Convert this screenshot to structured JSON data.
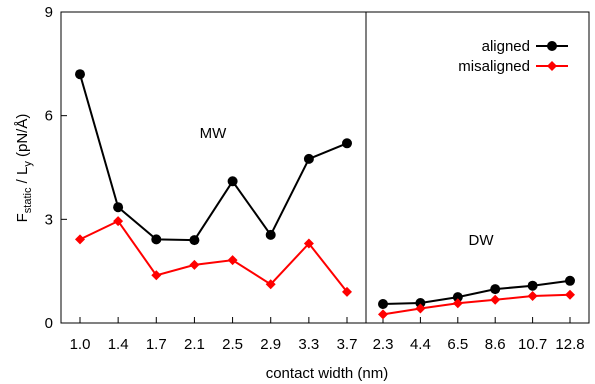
{
  "chart_data": {
    "type": "line",
    "xlabel": "contact width (nm)",
    "ylabel_main": "F",
    "ylabel_sub": "static",
    "ylabel_mid": " / L",
    "ylabel_sub2": "y",
    "ylabel_unit": "  (pN/Å)",
    "ylim": [
      0,
      9
    ],
    "yticks": [
      "0",
      "3",
      "6",
      "9"
    ],
    "yticks_values": [
      0,
      3,
      6,
      9
    ],
    "grid": false,
    "legend_position": "top-right",
    "categories": [
      "1.0",
      "1.4",
      "1.7",
      "2.1",
      "2.5",
      "2.9",
      "3.3",
      "3.7",
      "2.3",
      "4.4",
      "6.5",
      "8.6",
      "10.7",
      "12.8"
    ],
    "panels": [
      {
        "label": "MW",
        "categories": [
          "1.0",
          "1.4",
          "1.7",
          "2.1",
          "2.5",
          "2.9",
          "3.3",
          "3.7"
        ]
      },
      {
        "label": "DW",
        "categories": [
          "2.3",
          "4.4",
          "6.5",
          "8.6",
          "10.7",
          "12.8"
        ]
      }
    ],
    "series": [
      {
        "name": "aligned",
        "color": "#000000",
        "marker": "circle",
        "mw_values": [
          7.2,
          3.35,
          2.42,
          2.4,
          4.1,
          2.55,
          4.75,
          5.2
        ],
        "dw_values": [
          0.55,
          0.58,
          0.75,
          0.98,
          1.08,
          1.22
        ]
      },
      {
        "name": "misaligned",
        "color": "#ff0000",
        "marker": "diamond",
        "mw_values": [
          2.42,
          2.95,
          1.38,
          1.68,
          1.82,
          1.12,
          2.3,
          0.9
        ],
        "dw_values": [
          0.25,
          0.42,
          0.57,
          0.67,
          0.78,
          0.82
        ]
      }
    ]
  }
}
